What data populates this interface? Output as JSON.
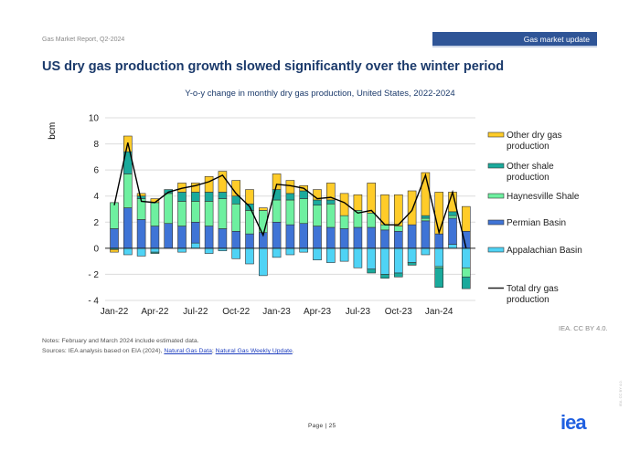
{
  "header": {
    "report_label": "Gas Market Report, Q2-2024",
    "section_badge": "Gas market update",
    "page_title": "US dry gas production growth slowed significantly over the winter period"
  },
  "colors": {
    "other_dry_gas": "#ffcc29",
    "other_shale": "#1aaa9c",
    "haynesville": "#6ef0a0",
    "permian": "#3f74d6",
    "appalachian": "#4fd3f5",
    "total_line": "#000000",
    "badge": "#2f5597",
    "title": "#1b3a6b",
    "logo": "#1f5fe0"
  },
  "chart_data": {
    "type": "bar",
    "stacked": true,
    "title": "Y-o-y change in monthly dry gas production, United States, 2022-2024",
    "xlabel": "",
    "ylabel": "bcm",
    "ylim": [
      -4,
      10
    ],
    "yticks": [
      10,
      8,
      6,
      4,
      2,
      0,
      -2,
      -4
    ],
    "ytick_labels": [
      "10",
      "8",
      "6",
      "4",
      "2",
      "0",
      "- 2",
      "- 4"
    ],
    "grid": true,
    "legend_position": "right",
    "categories": [
      "Jan-22",
      "Feb-22",
      "Mar-22",
      "Apr-22",
      "May-22",
      "Jun-22",
      "Jul-22",
      "Aug-22",
      "Sep-22",
      "Oct-22",
      "Nov-22",
      "Dec-22",
      "Jan-23",
      "Feb-23",
      "Mar-23",
      "Apr-23",
      "May-23",
      "Jun-23",
      "Jul-23",
      "Aug-23",
      "Sep-23",
      "Oct-23",
      "Nov-23",
      "Dec-23",
      "Jan-24",
      "Feb-24",
      "Mar-24"
    ],
    "xtick_labels": [
      {
        "index": 0,
        "label": "Jan-22"
      },
      {
        "index": 3,
        "label": "Apr-22"
      },
      {
        "index": 6,
        "label": "Jul-22"
      },
      {
        "index": 9,
        "label": "Oct-22"
      },
      {
        "index": 12,
        "label": "Jan-23"
      },
      {
        "index": 15,
        "label": "Apr-23"
      },
      {
        "index": 18,
        "label": "Jul-23"
      },
      {
        "index": 21,
        "label": "Oct-23"
      },
      {
        "index": 24,
        "label": "Jan-24"
      }
    ],
    "series": [
      {
        "name": "Appalachian Basin",
        "key": "appalachian",
        "values": [
          0.0,
          -0.5,
          -0.6,
          -0.3,
          0.0,
          -0.3,
          0.4,
          -0.4,
          -0.2,
          -0.8,
          -1.2,
          -2.1,
          -0.7,
          -0.5,
          -0.3,
          -0.9,
          -1.1,
          -1.0,
          -1.5,
          -1.6,
          -2.0,
          -1.9,
          -1.1,
          -0.5,
          -1.4,
          0.3,
          -1.5
        ]
      },
      {
        "name": "Permian Basin",
        "key": "permian",
        "values": [
          1.5,
          3.1,
          2.2,
          1.7,
          1.9,
          1.7,
          1.6,
          1.7,
          1.5,
          1.3,
          1.1,
          1.2,
          2.0,
          1.8,
          1.9,
          1.7,
          1.6,
          1.5,
          1.6,
          1.6,
          1.4,
          1.3,
          1.8,
          2.1,
          1.1,
          2.0,
          1.3
        ]
      },
      {
        "name": "Haynesville Shale",
        "key": "haynesville",
        "values": [
          2.0,
          2.6,
          1.6,
          1.8,
          2.3,
          1.9,
          1.6,
          1.9,
          2.3,
          2.1,
          1.8,
          1.7,
          1.7,
          1.9,
          1.9,
          1.6,
          1.8,
          1.0,
          1.3,
          1.1,
          0.4,
          0.4,
          0.0,
          0.2,
          -0.1,
          0.2,
          -0.7
        ]
      },
      {
        "name": "Other shale production",
        "key": "other_shale",
        "values": [
          -0.1,
          1.7,
          0.2,
          -0.1,
          0.3,
          0.7,
          0.7,
          0.7,
          0.5,
          0.6,
          0.5,
          0.0,
          0.8,
          0.5,
          0.6,
          0.4,
          0.3,
          0.0,
          0.0,
          -0.3,
          -0.3,
          -0.3,
          -0.2,
          0.2,
          -1.5,
          0.3,
          -0.9
        ]
      },
      {
        "name": "Other dry gas production",
        "key": "other_dry_gas",
        "values": [
          -0.2,
          1.2,
          0.2,
          0.3,
          0.0,
          0.7,
          0.7,
          1.2,
          1.6,
          1.2,
          1.1,
          0.2,
          1.2,
          1.0,
          0.4,
          0.8,
          1.3,
          1.7,
          1.2,
          2.3,
          2.3,
          2.4,
          2.6,
          3.3,
          3.2,
          1.5,
          1.9
        ]
      }
    ],
    "total_line": {
      "name": "Total dry gas production",
      "values": [
        3.3,
        8.1,
        3.6,
        3.5,
        4.3,
        4.6,
        4.8,
        5.1,
        5.6,
        4.2,
        3.2,
        1.0,
        4.9,
        4.8,
        4.6,
        3.8,
        3.9,
        3.5,
        2.7,
        2.9,
        1.8,
        1.8,
        2.9,
        5.6,
        1.2,
        4.3,
        0.0
      ]
    },
    "legend": [
      {
        "key": "other_dry_gas",
        "label_lines": [
          "Other dry gas",
          "production"
        ],
        "kind": "box"
      },
      {
        "key": "other_shale",
        "label_lines": [
          "Other shale",
          "production"
        ],
        "kind": "box"
      },
      {
        "key": "haynesville",
        "label_lines": [
          "Haynesville Shale"
        ],
        "kind": "box"
      },
      {
        "key": "permian",
        "label_lines": [
          "Permian Basin"
        ],
        "kind": "box"
      },
      {
        "key": "appalachian",
        "label_lines": [
          "Appalachian Basin"
        ],
        "kind": "box"
      },
      {
        "key": "total_line",
        "label_lines": [
          "Total dry gas",
          "production"
        ],
        "kind": "line"
      }
    ]
  },
  "footer": {
    "credit": "IEA. CC BY 4.0.",
    "notes": "Notes: February and March 2024 include estimated data.",
    "sources_prefix": "Sources: IEA analysis based on EIA (2024), ",
    "source_link_1": "Natural Gas Data",
    "sources_sep": "; ",
    "source_link_2": "Natural Gas Weekly Update",
    "sources_suffix": ".",
    "page_number": "Page | 25",
    "logo_text": "iea",
    "side_credit": "IEA. CC BY 4.0."
  }
}
